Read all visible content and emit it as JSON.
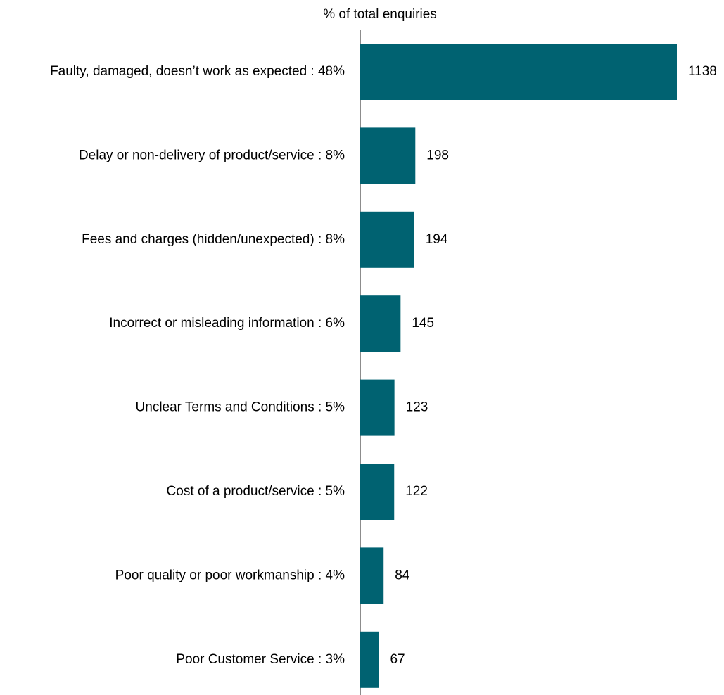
{
  "chart_data": {
    "type": "bar",
    "orientation": "horizontal",
    "title": "% of total enquiries",
    "categories": [
      "Faulty, damaged, doesn’t work as expected : 48%",
      "Delay or non-delivery of product/service : 8%",
      "Fees and charges (hidden/unexpected) : 8%",
      "Incorrect or misleading information : 6%",
      "Unclear Terms and Conditions : 5%",
      "Cost of a product/service : 5%",
      "Poor quality or poor workmanship : 4%",
      "Poor Customer Service : 3%"
    ],
    "values": [
      1138,
      198,
      194,
      145,
      123,
      122,
      84,
      67
    ],
    "data_labels": [
      "1138",
      "198",
      "194",
      "145",
      "123",
      "122",
      "84",
      "67"
    ],
    "xlim": [
      0,
      1138
    ],
    "grid": false,
    "legend": "none",
    "bar_color": "#006271"
  }
}
